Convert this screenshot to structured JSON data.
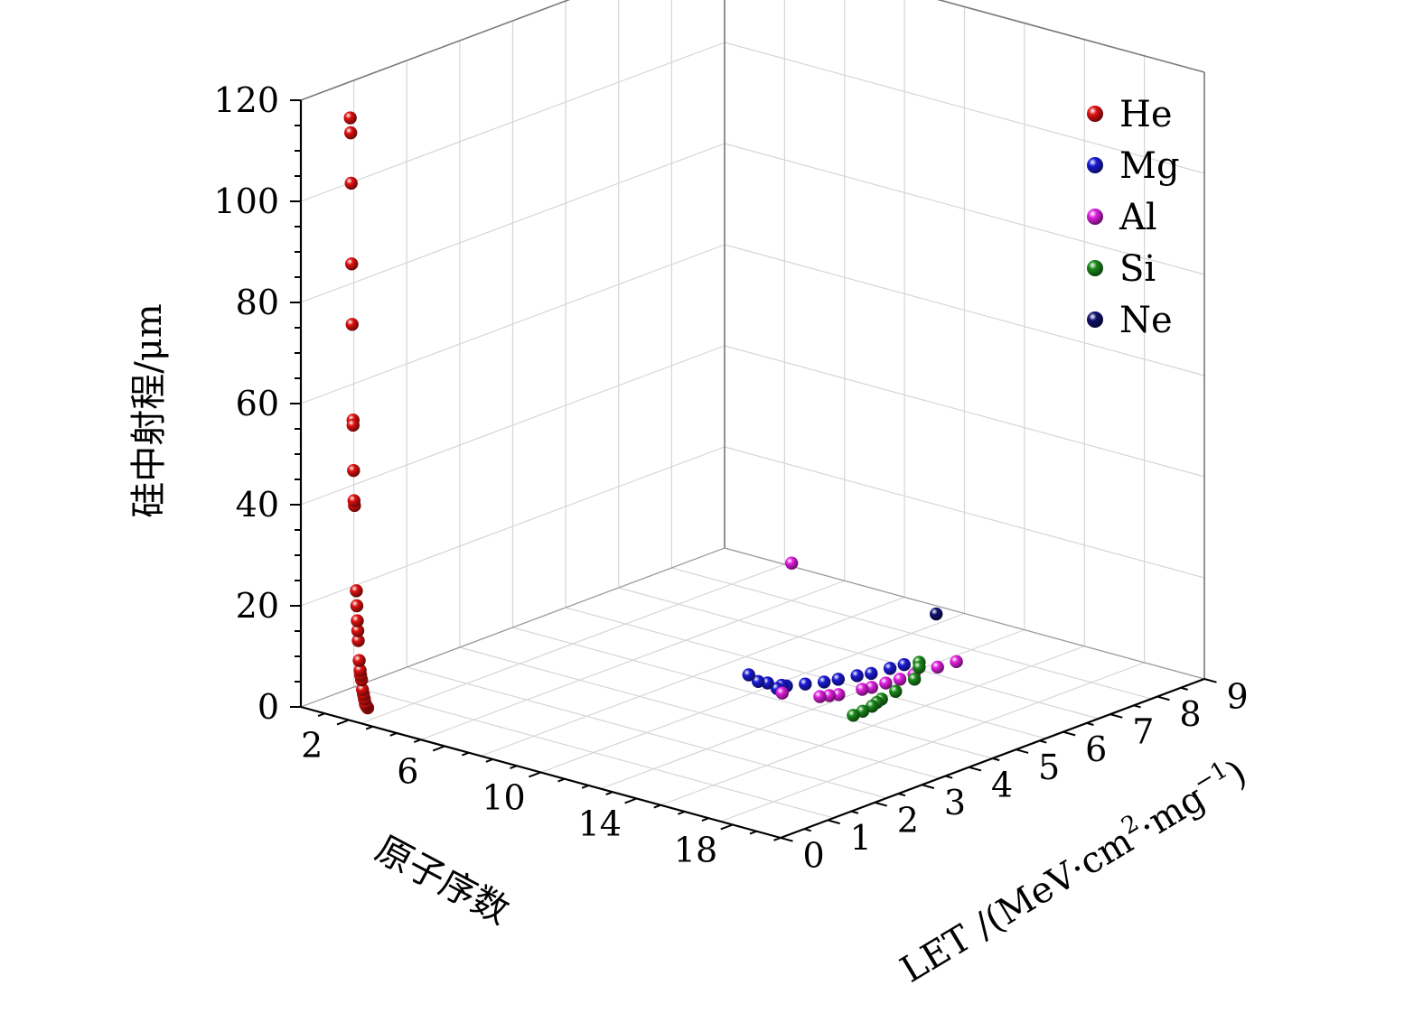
{
  "chart_data": {
    "type": "scatter3d",
    "title": "",
    "axes": {
      "x": {
        "label": "原子序数",
        "range": [
          0,
          20
        ],
        "ticks": [
          2,
          6,
          10,
          14,
          18
        ]
      },
      "y": {
        "label": "LET /(MeV·cm",
        "label_sup1": "2",
        "label_mid": "·mg",
        "label_sup2": "−1",
        "label_end": ")",
        "range": [
          0,
          9
        ],
        "ticks": [
          0,
          1,
          2,
          3,
          4,
          5,
          6,
          7,
          8,
          9
        ]
      },
      "z": {
        "label": "硅中射程/μm",
        "range": [
          0,
          120
        ],
        "ticks": [
          0,
          20,
          40,
          60,
          80,
          100,
          120
        ]
      }
    },
    "grid": true,
    "legend_position": "top-right",
    "series": [
      {
        "name": "He",
        "color": "#e01010",
        "points": [
          [
            2,
            0.03,
            119
          ],
          [
            2,
            0.04,
            116
          ],
          [
            2,
            0.05,
            106
          ],
          [
            2,
            0.06,
            90
          ],
          [
            2,
            0.07,
            78
          ],
          [
            2,
            0.09,
            59
          ],
          [
            2,
            0.09,
            58
          ],
          [
            2,
            0.1,
            49
          ],
          [
            2,
            0.11,
            43
          ],
          [
            2,
            0.12,
            42
          ],
          [
            2,
            0.16,
            25
          ],
          [
            2,
            0.17,
            22
          ],
          [
            2,
            0.18,
            19
          ],
          [
            2,
            0.19,
            17
          ],
          [
            2,
            0.2,
            15
          ],
          [
            2,
            0.22,
            11
          ],
          [
            2,
            0.24,
            9
          ],
          [
            2,
            0.25,
            8
          ],
          [
            2,
            0.27,
            7
          ],
          [
            2,
            0.29,
            5
          ],
          [
            2,
            0.31,
            4
          ],
          [
            2,
            0.33,
            3
          ],
          [
            2,
            0.35,
            2
          ],
          [
            2,
            0.37,
            1.5
          ],
          [
            2,
            0.4,
            1
          ]
        ]
      },
      {
        "name": "Mg",
        "color": "#1a1ad6",
        "points": [
          [
            12,
            3.4,
            10
          ],
          [
            12,
            3.6,
            8
          ],
          [
            12,
            3.8,
            7
          ],
          [
            12,
            4.1,
            5.5
          ],
          [
            12,
            4.0,
            5.2
          ],
          [
            12,
            4.2,
            5
          ],
          [
            12,
            4.6,
            4
          ],
          [
            12,
            5.0,
            3
          ],
          [
            12,
            5.3,
            2.5
          ],
          [
            12,
            5.7,
            1.8
          ],
          [
            12,
            6.0,
            1.2
          ],
          [
            12,
            6.4,
            0.8
          ],
          [
            12,
            6.7,
            0.5
          ]
        ]
      },
      {
        "name": "Al",
        "color": "#e020e0",
        "points": [
          [
            13,
            3.8,
            32
          ],
          [
            13,
            3.6,
            7
          ],
          [
            13,
            4.4,
            3.5
          ],
          [
            13,
            4.6,
            3
          ],
          [
            13,
            4.8,
            2.5
          ],
          [
            13,
            5.3,
            1.8
          ],
          [
            13,
            5.5,
            1.5
          ],
          [
            13,
            5.8,
            1.3
          ],
          [
            13,
            6.1,
            1
          ],
          [
            13,
            6.4,
            0.9
          ],
          [
            13,
            6.9,
            0.6
          ],
          [
            13,
            7.3,
            0.3
          ]
        ]
      },
      {
        "name": "Si",
        "color": "#1a8a1a",
        "points": [
          [
            14,
            6.0,
            6
          ],
          [
            14,
            6.0,
            5
          ],
          [
            14,
            5.9,
            3
          ],
          [
            14,
            5.5,
            2
          ],
          [
            14,
            5.2,
            1.5
          ],
          [
            14,
            5.1,
            1.2
          ],
          [
            14,
            5.0,
            0.8
          ],
          [
            14,
            4.8,
            0.5
          ],
          [
            14,
            4.6,
            0.4
          ]
        ]
      },
      {
        "name": "Ne",
        "color": "#101070",
        "points": [
          [
            10,
            8.4,
            2
          ]
        ]
      }
    ]
  }
}
